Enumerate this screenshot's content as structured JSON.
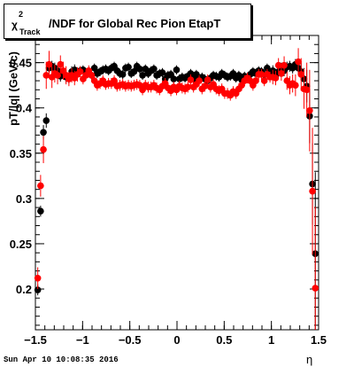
{
  "title": {
    "chi": "χ",
    "sup": "2",
    "sub": "Track",
    "rest": "/NDF for Global Rec Pion EtapT"
  },
  "axis": {
    "ylabel": "pT/|q| (GeV/c)",
    "xlabel": "η"
  },
  "datestamp": "Sun Apr 10 10:08:35 2016",
  "chart_data": {
    "type": "scatter",
    "title": "χ²_Track/NDF for Global Rec Pion EtapT",
    "xlabel": "η",
    "ylabel": "pT/|q| (GeV/c)",
    "xlim": [
      -1.5,
      1.5
    ],
    "ylim": [
      0.155,
      0.48
    ],
    "xticks": [
      -1.5,
      -1,
      -0.5,
      0,
      0.5,
      1,
      1.5
    ],
    "xtick_labels": [
      "−1.5",
      "−1",
      "−0.5",
      "0",
      "0.5",
      "1",
      "1.5"
    ],
    "yticks": [
      0.2,
      0.25,
      0.3,
      0.35,
      0.4,
      0.45
    ],
    "ytick_labels": [
      "0.2",
      "0.25",
      "0.3",
      "0.35",
      "0.4",
      "0.45"
    ],
    "grid": false,
    "series": [
      {
        "color": "#000000",
        "x": [
          -1.475,
          -1.445,
          -1.415,
          -1.385,
          -1.355,
          -1.325,
          -1.295,
          -1.265,
          -1.235,
          -1.205,
          -1.175,
          -1.145,
          -1.115,
          -1.085,
          -1.055,
          -1.025,
          -0.995,
          -0.965,
          -0.935,
          -0.905,
          -0.875,
          -0.845,
          -0.815,
          -0.785,
          -0.755,
          -0.725,
          -0.695,
          -0.665,
          -0.635,
          -0.605,
          -0.575,
          -0.545,
          -0.515,
          -0.485,
          -0.455,
          -0.425,
          -0.395,
          -0.365,
          -0.335,
          -0.305,
          -0.275,
          -0.245,
          -0.215,
          -0.185,
          -0.155,
          -0.125,
          -0.095,
          -0.065,
          -0.035,
          -0.005,
          0.025,
          0.055,
          0.085,
          0.115,
          0.145,
          0.175,
          0.205,
          0.235,
          0.265,
          0.295,
          0.325,
          0.355,
          0.385,
          0.415,
          0.445,
          0.475,
          0.505,
          0.535,
          0.565,
          0.595,
          0.625,
          0.655,
          0.685,
          0.715,
          0.745,
          0.775,
          0.805,
          0.835,
          0.865,
          0.895,
          0.925,
          0.955,
          0.985,
          1.015,
          1.045,
          1.075,
          1.105,
          1.135,
          1.165,
          1.195,
          1.225,
          1.255,
          1.285,
          1.315,
          1.345,
          1.375,
          1.405,
          1.435,
          1.465
        ],
        "y": [
          0.199,
          0.286,
          0.373,
          0.386,
          0.444,
          0.446,
          0.444,
          0.441,
          0.435,
          0.438,
          0.434,
          0.433,
          0.44,
          0.442,
          0.438,
          0.441,
          0.442,
          0.439,
          0.44,
          0.436,
          0.444,
          0.438,
          0.44,
          0.442,
          0.443,
          0.441,
          0.444,
          0.446,
          0.441,
          0.438,
          0.437,
          0.444,
          0.445,
          0.438,
          0.44,
          0.446,
          0.443,
          0.436,
          0.443,
          0.438,
          0.441,
          0.443,
          0.436,
          0.438,
          0.439,
          0.432,
          0.436,
          0.437,
          0.432,
          0.442,
          0.432,
          0.434,
          0.433,
          0.435,
          0.438,
          0.432,
          0.437,
          0.433,
          0.434,
          0.432,
          0.43,
          0.433,
          0.436,
          0.435,
          0.434,
          0.438,
          0.436,
          0.434,
          0.435,
          0.438,
          0.433,
          0.436,
          0.431,
          0.435,
          0.433,
          0.437,
          0.44,
          0.438,
          0.441,
          0.44,
          0.437,
          0.444,
          0.44,
          0.441,
          0.437,
          0.44,
          0.444,
          0.441,
          0.445,
          0.446,
          0.444,
          0.448,
          0.444,
          0.44,
          0.432,
          0.424,
          0.391,
          0.316,
          0.239
        ],
        "yerr": [
          0.006,
          0.006,
          0.008,
          0.008,
          0.008,
          0.006,
          0.006,
          0.006,
          0.006,
          0.006,
          0.006,
          0.006,
          0.006,
          0.006,
          0.006,
          0.005,
          0.005,
          0.005,
          0.005,
          0.005,
          0.005,
          0.005,
          0.005,
          0.005,
          0.005,
          0.005,
          0.005,
          0.005,
          0.005,
          0.005,
          0.005,
          0.005,
          0.005,
          0.005,
          0.005,
          0.005,
          0.005,
          0.005,
          0.005,
          0.005,
          0.005,
          0.005,
          0.005,
          0.005,
          0.005,
          0.005,
          0.005,
          0.005,
          0.005,
          0.005,
          0.005,
          0.005,
          0.005,
          0.005,
          0.005,
          0.005,
          0.005,
          0.005,
          0.005,
          0.005,
          0.005,
          0.005,
          0.005,
          0.005,
          0.005,
          0.005,
          0.005,
          0.005,
          0.005,
          0.005,
          0.005,
          0.005,
          0.005,
          0.005,
          0.005,
          0.005,
          0.005,
          0.005,
          0.005,
          0.005,
          0.005,
          0.005,
          0.005,
          0.006,
          0.006,
          0.006,
          0.006,
          0.006,
          0.006,
          0.006,
          0.006,
          0.006,
          0.008,
          0.01,
          0.012,
          0.018,
          0.03,
          0.045,
          0.09
        ]
      },
      {
        "color": "#ff0000",
        "x": [
          -1.475,
          -1.445,
          -1.415,
          -1.385,
          -1.355,
          -1.325,
          -1.295,
          -1.265,
          -1.235,
          -1.205,
          -1.175,
          -1.145,
          -1.115,
          -1.085,
          -1.055,
          -1.025,
          -0.995,
          -0.965,
          -0.935,
          -0.905,
          -0.875,
          -0.845,
          -0.815,
          -0.785,
          -0.755,
          -0.725,
          -0.695,
          -0.665,
          -0.635,
          -0.605,
          -0.575,
          -0.545,
          -0.515,
          -0.485,
          -0.455,
          -0.425,
          -0.395,
          -0.365,
          -0.335,
          -0.305,
          -0.275,
          -0.245,
          -0.215,
          -0.185,
          -0.155,
          -0.125,
          -0.095,
          -0.065,
          -0.035,
          -0.005,
          0.025,
          0.055,
          0.085,
          0.115,
          0.145,
          0.175,
          0.205,
          0.235,
          0.265,
          0.295,
          0.325,
          0.355,
          0.385,
          0.415,
          0.445,
          0.475,
          0.505,
          0.535,
          0.565,
          0.595,
          0.625,
          0.655,
          0.685,
          0.715,
          0.745,
          0.775,
          0.805,
          0.835,
          0.865,
          0.895,
          0.925,
          0.955,
          0.985,
          1.015,
          1.045,
          1.075,
          1.105,
          1.135,
          1.165,
          1.195,
          1.225,
          1.255,
          1.285,
          1.315,
          1.345,
          1.375,
          1.405,
          1.435,
          1.465
        ],
        "y": [
          0.212,
          0.314,
          0.354,
          0.436,
          0.448,
          0.434,
          0.438,
          0.436,
          0.448,
          0.441,
          0.436,
          0.432,
          0.436,
          0.433,
          0.437,
          0.44,
          0.432,
          0.436,
          0.441,
          0.436,
          0.43,
          0.425,
          0.427,
          0.43,
          0.426,
          0.427,
          0.427,
          0.43,
          0.424,
          0.425,
          0.426,
          0.424,
          0.425,
          0.424,
          0.425,
          0.426,
          0.425,
          0.42,
          0.425,
          0.423,
          0.423,
          0.425,
          0.422,
          0.42,
          0.424,
          0.427,
          0.422,
          0.419,
          0.423,
          0.42,
          0.424,
          0.422,
          0.421,
          0.423,
          0.431,
          0.423,
          0.426,
          0.43,
          0.421,
          0.424,
          0.431,
          0.423,
          0.426,
          0.421,
          0.419,
          0.421,
          0.416,
          0.416,
          0.414,
          0.418,
          0.416,
          0.421,
          0.425,
          0.43,
          0.433,
          0.43,
          0.425,
          0.43,
          0.437,
          0.437,
          0.43,
          0.437,
          0.434,
          0.434,
          0.433,
          0.447,
          0.438,
          0.447,
          0.43,
          0.425,
          0.427,
          0.425,
          0.451,
          0.437,
          0.421,
          0.42,
          0.397,
          0.308,
          0.201
        ],
        "yerr": [
          0.012,
          0.012,
          0.015,
          0.015,
          0.015,
          0.012,
          0.01,
          0.01,
          0.01,
          0.01,
          0.01,
          0.008,
          0.008,
          0.008,
          0.008,
          0.006,
          0.006,
          0.006,
          0.006,
          0.006,
          0.006,
          0.006,
          0.006,
          0.006,
          0.006,
          0.006,
          0.006,
          0.006,
          0.006,
          0.006,
          0.006,
          0.006,
          0.006,
          0.006,
          0.006,
          0.006,
          0.006,
          0.006,
          0.006,
          0.006,
          0.006,
          0.006,
          0.006,
          0.006,
          0.006,
          0.006,
          0.006,
          0.006,
          0.006,
          0.006,
          0.006,
          0.006,
          0.006,
          0.006,
          0.006,
          0.006,
          0.006,
          0.006,
          0.006,
          0.006,
          0.006,
          0.006,
          0.006,
          0.006,
          0.006,
          0.006,
          0.006,
          0.006,
          0.006,
          0.006,
          0.006,
          0.006,
          0.006,
          0.006,
          0.006,
          0.006,
          0.006,
          0.006,
          0.006,
          0.006,
          0.006,
          0.006,
          0.006,
          0.008,
          0.008,
          0.008,
          0.008,
          0.01,
          0.01,
          0.01,
          0.01,
          0.012,
          0.015,
          0.018,
          0.022,
          0.03,
          0.045,
          0.07,
          0.09
        ]
      }
    ]
  }
}
